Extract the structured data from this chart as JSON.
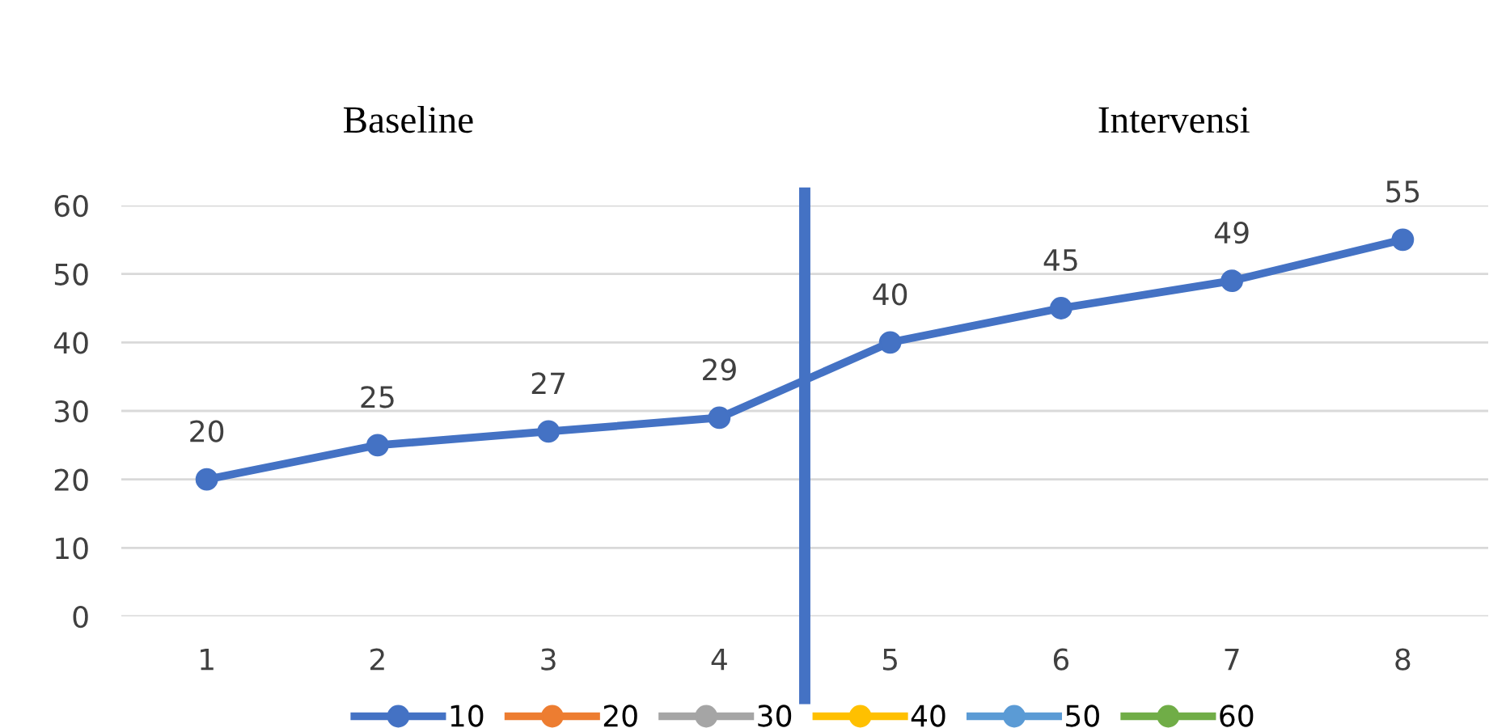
{
  "chart_data": {
    "type": "line",
    "x": [
      1,
      2,
      3,
      4,
      5,
      6,
      7,
      8
    ],
    "series": [
      {
        "name": "10",
        "color": "#4472c4",
        "values": [
          20,
          25,
          27,
          29,
          40,
          45,
          49,
          55
        ]
      },
      {
        "name": "20",
        "color": "#ed7d31",
        "values": [
          null,
          null,
          null,
          null,
          null,
          null,
          null,
          null
        ]
      },
      {
        "name": "30",
        "color": "#a5a5a5",
        "values": [
          null,
          null,
          null,
          null,
          null,
          null,
          null,
          null
        ]
      },
      {
        "name": "40",
        "color": "#ffc000",
        "values": [
          null,
          null,
          null,
          null,
          null,
          null,
          null,
          null
        ]
      },
      {
        "name": "50",
        "color": "#5b9bd5",
        "values": [
          null,
          null,
          null,
          null,
          null,
          null,
          null,
          null
        ]
      },
      {
        "name": "60",
        "color": "#70ad47",
        "values": [
          null,
          null,
          null,
          null,
          null,
          null,
          null,
          null
        ]
      }
    ],
    "xlim": [
      0.5,
      8.5
    ],
    "xticks": [
      1,
      2,
      3,
      4,
      5,
      6,
      7,
      8
    ],
    "ylim": [
      0,
      60
    ],
    "yticks": [
      0,
      10,
      20,
      30,
      40,
      50,
      60
    ],
    "ref_lines": [
      {
        "axis": "x",
        "value": 4.5,
        "color": "#4472c4"
      }
    ],
    "annotations": [
      "Baseline",
      "Intervensi"
    ],
    "data_labels": true,
    "grid": "y",
    "legend": "bottom",
    "marker": "circle",
    "line_style": "solid"
  }
}
